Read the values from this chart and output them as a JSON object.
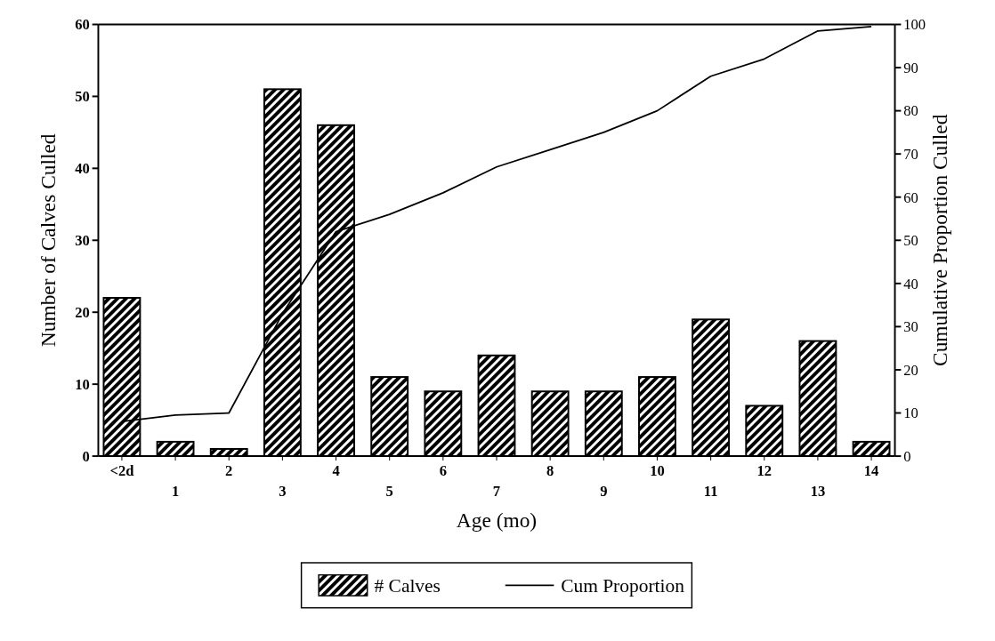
{
  "chart_data": {
    "type": "bar",
    "xlabel": "Age (mo)",
    "ylabel": "Number of Calves Culled",
    "y2label": "Cumulative Proportion Culled",
    "categories": [
      "<2d",
      "1",
      "2",
      "3",
      "4",
      "5",
      "6",
      "7",
      "8",
      "9",
      "10",
      "11",
      "12",
      "13",
      "14"
    ],
    "ylim": [
      0,
      60
    ],
    "yticks": [
      0,
      10,
      20,
      30,
      40,
      50,
      60
    ],
    "y2lim": [
      0,
      100
    ],
    "y2ticks": [
      0,
      10,
      20,
      30,
      40,
      50,
      60,
      70,
      80,
      90,
      100
    ],
    "series": [
      {
        "name": "# Calves",
        "color": "#000000",
        "values": [
          22,
          2,
          1,
          51,
          46,
          11,
          9,
          14,
          9,
          9,
          11,
          19,
          7,
          16,
          2
        ]
      },
      {
        "name": "Cum Proportion",
        "type": "line",
        "axis": "y2",
        "color": "#000000",
        "values": [
          8,
          9.5,
          10,
          33,
          52,
          56,
          61,
          67,
          71,
          75,
          80,
          88,
          92,
          98.5,
          99.5
        ]
      }
    ],
    "legend": "bottom",
    "grid": false
  }
}
